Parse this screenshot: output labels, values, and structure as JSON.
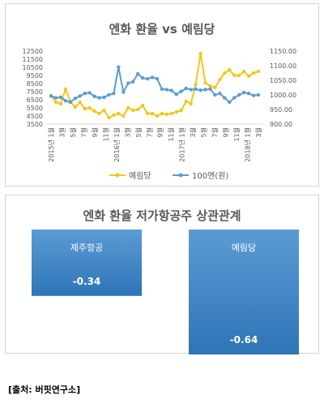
{
  "source": "[출처: 버핏연구소]",
  "colors": {
    "yerimdang": "#f5c518",
    "jpy": "#5b9bd5",
    "bar_top": "#5b9bd5",
    "bar_bottom": "#2e75b6"
  },
  "chart_data": [
    {
      "type": "line",
      "title": "엔화 환율 vs 예림당",
      "legend_position": "bottom",
      "grid": false,
      "x_labels": [
        "2015년 1월",
        "3월",
        "5월",
        "7월",
        "9월",
        "11월",
        "2016년 1월",
        "3월",
        "5월",
        "7월",
        "9월",
        "11월",
        "2017년 1월",
        "3월",
        "5월",
        "7월",
        "9월",
        "11월",
        "2018년 1월",
        "3월"
      ],
      "y_left": {
        "min": 3500,
        "max": 12500,
        "step": 1000,
        "ticks": [
          "3500",
          "4500",
          "5500",
          "6500",
          "7500",
          "8500",
          "9500",
          "10500",
          "11500",
          "12500"
        ]
      },
      "y_right": {
        "min": 900,
        "max": 1150,
        "step": 50,
        "ticks": [
          "900.00",
          "950.00",
          "1000.00",
          "1050.00",
          "1100.00",
          "1150.00"
        ]
      },
      "series": [
        {
          "name": "예림당",
          "axis": "left",
          "values": [
            7000,
            6200,
            6000,
            7800,
            6300,
            5600,
            6200,
            5400,
            5500,
            5100,
            4800,
            5200,
            4300,
            4600,
            4800,
            4500,
            5500,
            5200,
            5300,
            5800,
            4800,
            4800,
            4500,
            4800,
            4700,
            4800,
            5000,
            5200,
            6300,
            6000,
            8400,
            12200,
            8600,
            8200,
            8000,
            9000,
            9800,
            10200,
            9500,
            9500,
            10000,
            9400,
            9800,
            10000
          ]
        },
        {
          "name": "100엔(원)",
          "axis": "right",
          "values": [
            996,
            990,
            992,
            980,
            975,
            988,
            996,
            1005,
            1007,
            995,
            990,
            992,
            1000,
            1005,
            1095,
            1010,
            1040,
            1045,
            1072,
            1058,
            1055,
            1060,
            1055,
            1020,
            1018,
            1015,
            1002,
            1012,
            1022,
            1018,
            1020,
            1016,
            1018,
            1020,
            1000,
            1005,
            990,
            975,
            990,
            1000,
            1008,
            1005,
            998,
            1000
          ]
        }
      ]
    },
    {
      "type": "bar",
      "title": "엔화 환율 저가항공주 상관관계",
      "categories": [
        "제주항공",
        "예림당"
      ],
      "values": [
        -0.34,
        -0.64
      ],
      "value_labels": [
        "-0.34",
        "-0.64"
      ],
      "ylim": [
        -0.7,
        0
      ]
    }
  ]
}
